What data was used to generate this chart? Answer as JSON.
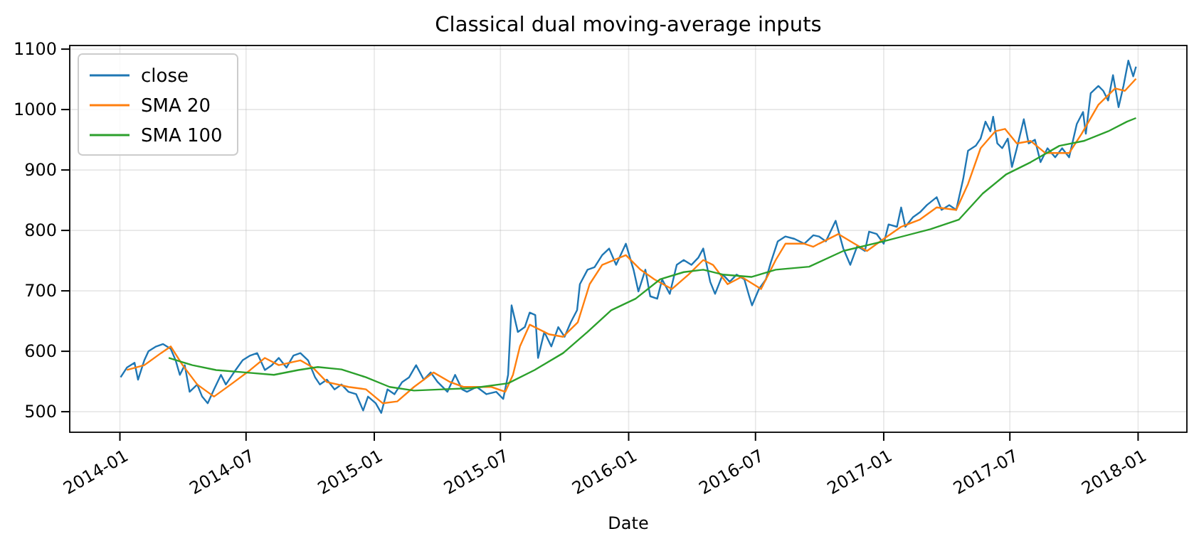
{
  "chart_data": {
    "type": "line",
    "title": "Classical dual moving-average inputs",
    "xlabel": "Date",
    "xlim": [
      "2013-10-21",
      "2018-03-12"
    ],
    "xticks": [
      "2014-01",
      "2014-07",
      "2015-01",
      "2015-07",
      "2016-01",
      "2016-07",
      "2017-01",
      "2017-07",
      "2018-01"
    ],
    "ylim": [
      466,
      1106
    ],
    "yticks": [
      500,
      600,
      700,
      800,
      900,
      1000,
      1100
    ],
    "grid": true,
    "legend": "top left",
    "line_style": "solid",
    "series": [
      {
        "name": "close",
        "color": "#1f77b4",
        "x": [
          "2014-01-02",
          "2014-01-11",
          "2014-01-22",
          "2014-01-27",
          "2014-02-05",
          "2014-02-11",
          "2014-02-22",
          "2014-03-04",
          "2014-03-15",
          "2014-03-22",
          "2014-03-28",
          "2014-04-04",
          "2014-04-11",
          "2014-04-22",
          "2014-04-29",
          "2014-05-07",
          "2014-05-16",
          "2014-05-26",
          "2014-06-02",
          "2014-06-16",
          "2014-06-26",
          "2014-07-07",
          "2014-07-17",
          "2014-07-28",
          "2014-08-07",
          "2014-08-17",
          "2014-08-28",
          "2014-09-07",
          "2014-09-17",
          "2014-09-28",
          "2014-10-08",
          "2014-10-15",
          "2014-10-25",
          "2014-11-05",
          "2014-11-15",
          "2014-11-25",
          "2014-12-06",
          "2014-12-16",
          "2014-12-23",
          "2015-01-03",
          "2015-01-11",
          "2015-01-20",
          "2015-01-30",
          "2015-02-10",
          "2015-02-20",
          "2015-03-02",
          "2015-03-13",
          "2015-03-23",
          "2015-04-02",
          "2015-04-16",
          "2015-04-27",
          "2015-05-07",
          "2015-05-14",
          "2015-05-28",
          "2015-06-11",
          "2015-06-25",
          "2015-07-05",
          "2015-07-12",
          "2015-07-17",
          "2015-07-26",
          "2015-08-05",
          "2015-08-12",
          "2015-08-20",
          "2015-08-24",
          "2015-09-02",
          "2015-09-12",
          "2015-09-22",
          "2015-10-01",
          "2015-10-10",
          "2015-10-19",
          "2015-10-23",
          "2015-11-03",
          "2015-11-13",
          "2015-11-24",
          "2015-12-04",
          "2015-12-14",
          "2015-12-28",
          "2016-01-08",
          "2016-01-15",
          "2016-01-25",
          "2016-02-01",
          "2016-02-11",
          "2016-02-18",
          "2016-02-29",
          "2016-03-10",
          "2016-03-20",
          "2016-03-31",
          "2016-04-10",
          "2016-04-17",
          "2016-04-27",
          "2016-05-04",
          "2016-05-15",
          "2016-05-25",
          "2016-06-04",
          "2016-06-15",
          "2016-06-22",
          "2016-06-26",
          "2016-07-06",
          "2016-07-16",
          "2016-07-23",
          "2016-08-02",
          "2016-08-13",
          "2016-08-26",
          "2016-09-09",
          "2016-09-22",
          "2016-09-30",
          "2016-10-10",
          "2016-10-24",
          "2016-11-04",
          "2016-11-14",
          "2016-11-24",
          "2016-12-05",
          "2016-12-11",
          "2016-12-22",
          "2017-01-01",
          "2017-01-08",
          "2017-01-20",
          "2017-01-26",
          "2017-02-01",
          "2017-02-12",
          "2017-02-22",
          "2017-03-04",
          "2017-03-18",
          "2017-03-25",
          "2017-04-05",
          "2017-04-15",
          "2017-04-25",
          "2017-05-02",
          "2017-05-13",
          "2017-05-20",
          "2017-05-27",
          "2017-06-03",
          "2017-06-07",
          "2017-06-13",
          "2017-06-20",
          "2017-06-28",
          "2017-07-04",
          "2017-07-11",
          "2017-07-21",
          "2017-07-28",
          "2017-08-06",
          "2017-08-14",
          "2017-08-24",
          "2017-09-04",
          "2017-09-14",
          "2017-09-24",
          "2017-10-05",
          "2017-10-14",
          "2017-10-18",
          "2017-10-25",
          "2017-11-05",
          "2017-11-12",
          "2017-11-19",
          "2017-11-26",
          "2017-12-04",
          "2017-12-11",
          "2017-12-18",
          "2017-12-25",
          "2017-12-29"
        ],
        "values": [
          557,
          573,
          581,
          553,
          585,
          600,
          608,
          612,
          604,
          585,
          561,
          577,
          533,
          545,
          525,
          514,
          537,
          561,
          545,
          569,
          585,
          593,
          597,
          569,
          577,
          589,
          573,
          593,
          597,
          585,
          557,
          545,
          553,
          537,
          545,
          533,
          529,
          502,
          525,
          514,
          498,
          537,
          529,
          549,
          557,
          577,
          553,
          565,
          549,
          533,
          561,
          537,
          533,
          541,
          529,
          533,
          521,
          561,
          676,
          632,
          640,
          664,
          660,
          589,
          632,
          608,
          640,
          624,
          648,
          668,
          711,
          735,
          739,
          759,
          770,
          743,
          778,
          735,
          699,
          735,
          691,
          687,
          719,
          695,
          743,
          751,
          743,
          755,
          770,
          715,
          695,
          727,
          715,
          727,
          719,
          691,
          676,
          703,
          719,
          747,
          782,
          790,
          786,
          778,
          792,
          790,
          782,
          816,
          770,
          743,
          774,
          766,
          798,
          794,
          778,
          810,
          806,
          838,
          806,
          822,
          830,
          842,
          855,
          834,
          842,
          834,
          885,
          932,
          940,
          952,
          980,
          964,
          988,
          944,
          936,
          952,
          905,
          936,
          984,
          944,
          950,
          913,
          936,
          921,
          936,
          921,
          976,
          996,
          960,
          1027,
          1039,
          1031,
          1015,
          1057,
          1004,
          1039,
          1081,
          1055,
          1071
        ]
      },
      {
        "name": "SMA 20",
        "color": "#ff7f0e",
        "x": [
          "2014-01-11",
          "2014-02-05",
          "2014-03-01",
          "2014-03-15",
          "2014-04-01",
          "2014-04-22",
          "2014-05-16",
          "2014-06-09",
          "2014-07-07",
          "2014-07-28",
          "2014-08-17",
          "2014-09-17",
          "2014-10-05",
          "2014-10-25",
          "2014-11-25",
          "2014-12-20",
          "2015-01-13",
          "2015-02-03",
          "2015-02-27",
          "2015-03-27",
          "2015-04-20",
          "2015-05-09",
          "2015-05-21",
          "2015-06-18",
          "2015-07-08",
          "2015-07-19",
          "2015-07-29",
          "2015-08-12",
          "2015-09-09",
          "2015-09-29",
          "2015-10-20",
          "2015-11-06",
          "2015-11-24",
          "2015-12-28",
          "2016-01-18",
          "2016-02-07",
          "2016-03-03",
          "2016-03-27",
          "2016-04-17",
          "2016-05-01",
          "2016-05-22",
          "2016-06-11",
          "2016-07-09",
          "2016-07-30",
          "2016-08-13",
          "2016-09-09",
          "2016-09-22",
          "2016-09-30",
          "2016-10-28",
          "2016-11-20",
          "2016-12-08",
          "2017-01-01",
          "2017-01-26",
          "2017-02-22",
          "2017-03-18",
          "2017-04-15",
          "2017-05-02",
          "2017-05-20",
          "2017-06-10",
          "2017-06-24",
          "2017-07-11",
          "2017-07-31",
          "2017-08-21",
          "2017-09-24",
          "2017-10-12",
          "2017-11-05",
          "2017-11-29",
          "2017-12-13",
          "2017-12-29"
        ],
        "values": [
          569,
          577,
          597,
          608,
          577,
          545,
          525,
          545,
          569,
          589,
          577,
          585,
          573,
          549,
          541,
          537,
          514,
          517,
          541,
          565,
          549,
          541,
          541,
          541,
          533,
          561,
          608,
          644,
          628,
          624,
          648,
          711,
          743,
          759,
          735,
          719,
          703,
          727,
          751,
          743,
          711,
          723,
          703,
          751,
          778,
          778,
          773,
          778,
          794,
          778,
          766,
          786,
          806,
          818,
          838,
          834,
          877,
          936,
          964,
          968,
          944,
          948,
          928,
          928,
          960,
          1008,
          1035,
          1031,
          1051
        ]
      },
      {
        "name": "SMA 100",
        "color": "#2ca02c",
        "x": [
          "2014-03-12",
          "2014-04-15",
          "2014-05-19",
          "2014-06-30",
          "2014-08-10",
          "2014-09-14",
          "2014-10-12",
          "2014-11-15",
          "2014-12-20",
          "2015-01-23",
          "2015-02-27",
          "2015-04-09",
          "2015-05-21",
          "2015-07-12",
          "2015-08-19",
          "2015-09-29",
          "2015-11-03",
          "2015-12-07",
          "2016-01-11",
          "2016-02-15",
          "2016-03-20",
          "2016-04-17",
          "2016-05-15",
          "2016-06-25",
          "2016-07-30",
          "2016-09-16",
          "2016-11-04",
          "2017-01-01",
          "2017-03-09",
          "2017-04-19",
          "2017-05-23",
          "2017-06-26",
          "2017-07-31",
          "2017-09-10",
          "2017-10-15",
          "2017-11-19",
          "2017-12-16",
          "2017-12-29"
        ],
        "values": [
          589,
          577,
          569,
          565,
          561,
          569,
          574,
          570,
          557,
          541,
          535,
          537,
          539,
          547,
          569,
          597,
          632,
          668,
          687,
          719,
          731,
          735,
          727,
          723,
          735,
          740,
          766,
          782,
          802,
          818,
          861,
          893,
          913,
          940,
          948,
          964,
          980,
          986
        ]
      }
    ]
  }
}
